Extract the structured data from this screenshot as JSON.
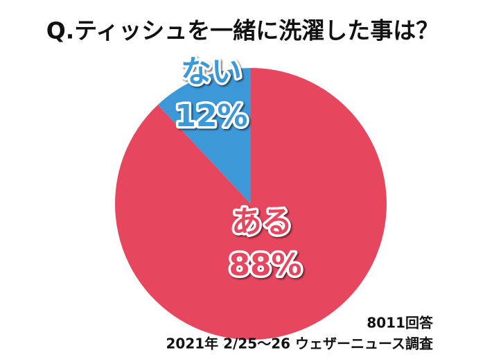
{
  "chart_data": {
    "type": "pie",
    "title": "Q.ティッシュを一緒に洗濯した事は？",
    "categories": [
      "ある",
      "ない"
    ],
    "values": [
      88,
      12
    ],
    "value_labels": [
      "88%",
      "12%"
    ],
    "colors": [
      "#e6475f",
      "#3d98d8"
    ],
    "notes": [
      "8011回答",
      "2021年 2/25～26 ウェザーニュース調査"
    ]
  }
}
